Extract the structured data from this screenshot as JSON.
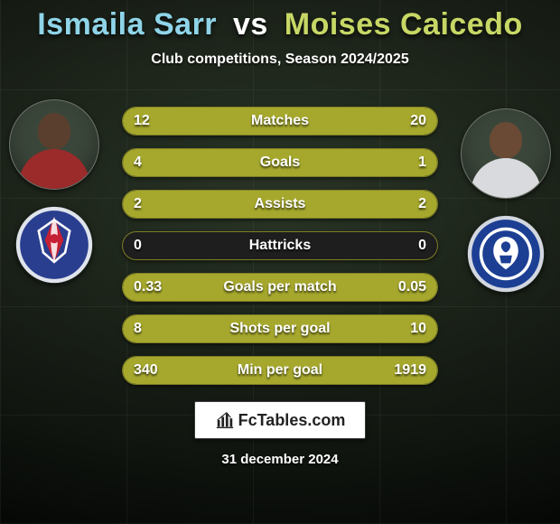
{
  "title": {
    "player1": "Ismaila Sarr",
    "vs": "vs",
    "player2": "Moises Caicedo",
    "player1_color": "#8fd4e8",
    "player2_color": "#c7d765",
    "vs_color": "#ffffff",
    "fontsize": 34
  },
  "subtitle": "Club competitions, Season 2024/2025",
  "date": "31 december 2024",
  "colors": {
    "bar_bg": "#1e1e1e",
    "bar_border": "#7e7e25",
    "fill_left": "#a6a82d",
    "fill_right": "#a6a82d",
    "text": "#ffffff",
    "background": "#2e3a2a"
  },
  "avatars": {
    "left_player": {
      "skin": "#5a3f2e",
      "shirt": "#9b2a2a"
    },
    "right_player": {
      "skin": "#6a4a34",
      "shirt": "#d9dadd"
    },
    "left_club": {
      "primary": "#2a3e8f",
      "secondary": "#c62034",
      "accent": "#ffffff",
      "name": "crystal-palace-badge"
    },
    "right_club": {
      "primary": "#1c3f94",
      "secondary": "#ffffff",
      "accent": "#d3d7e0",
      "name": "chelsea-badge"
    }
  },
  "logo": {
    "text": "FcTables.com",
    "icon_color": "#222222"
  },
  "typography": {
    "bar_label_fontsize": 16,
    "bar_value_fontsize": 16,
    "subtitle_fontsize": 16,
    "date_fontsize": 15
  },
  "bars": [
    {
      "label": "Matches",
      "left": "12",
      "right": "20",
      "left_frac": 0.375,
      "right_frac": 0.625
    },
    {
      "label": "Goals",
      "left": "4",
      "right": "1",
      "left_frac": 0.8,
      "right_frac": 0.2
    },
    {
      "label": "Assists",
      "left": "2",
      "right": "2",
      "left_frac": 0.5,
      "right_frac": 0.5
    },
    {
      "label": "Hattricks",
      "left": "0",
      "right": "0",
      "left_frac": 0.0,
      "right_frac": 0.0
    },
    {
      "label": "Goals per match",
      "left": "0.33",
      "right": "0.05",
      "left_frac": 0.87,
      "right_frac": 0.13
    },
    {
      "label": "Shots per goal",
      "left": "8",
      "right": "10",
      "left_frac": 0.444,
      "right_frac": 0.556
    },
    {
      "label": "Min per goal",
      "left": "340",
      "right": "1919",
      "left_frac": 0.15,
      "right_frac": 0.85
    }
  ]
}
